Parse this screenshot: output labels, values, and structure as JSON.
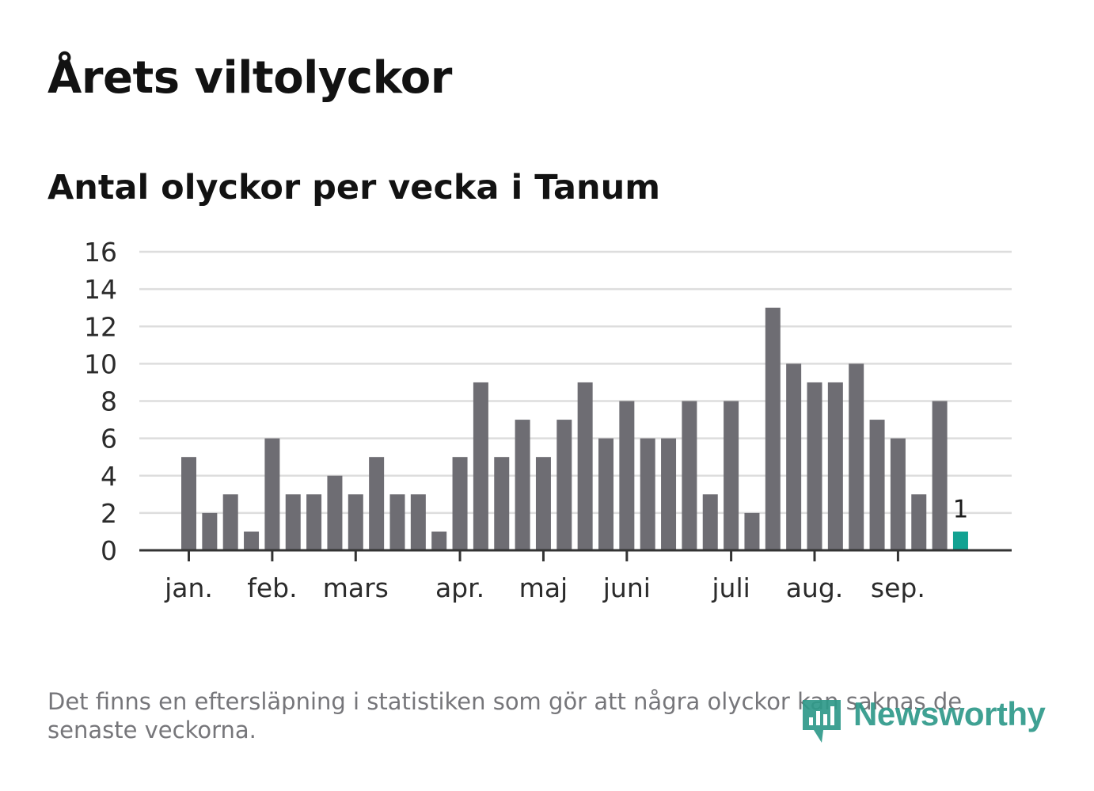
{
  "title": "Årets viltolyckor",
  "subtitle": "Antal olyckor per vecka i Tanum",
  "note": "Det finns en eftersläpning i statistiken som gör att några olyckor kan saknas de senaste veckorna.",
  "brand": {
    "name": "Newsworthy",
    "color": "#2f9a8a",
    "icon": "newsworthy-logo-icon"
  },
  "colors": {
    "bar": "#6e6d73",
    "highlight": "#12a292",
    "grid": "#dddddd",
    "axis": "#333333"
  },
  "chart_data": {
    "type": "bar",
    "title": "Antal olyckor per vecka i Tanum",
    "xlabel": "",
    "ylabel": "",
    "ylim": [
      0,
      16
    ],
    "yticks": [
      "0",
      "2",
      "4",
      "6",
      "8",
      "10",
      "12",
      "14",
      "16"
    ],
    "grid": true,
    "weeks": [
      1,
      2,
      3,
      4,
      5,
      6,
      7,
      8,
      9,
      10,
      11,
      12,
      13,
      14,
      15,
      16,
      17,
      18,
      19,
      20,
      21,
      22,
      23,
      24,
      25,
      26,
      27,
      28,
      29,
      30,
      31,
      32,
      33,
      34,
      35,
      36,
      37,
      38
    ],
    "values": [
      5,
      2,
      3,
      1,
      6,
      3,
      3,
      4,
      3,
      5,
      3,
      3,
      1,
      5,
      9,
      5,
      7,
      5,
      7,
      9,
      6,
      8,
      6,
      6,
      8,
      3,
      8,
      2,
      13,
      10,
      9,
      9,
      10,
      7,
      6,
      3,
      8,
      1
    ],
    "highlight_last": true,
    "last_value_label": "1",
    "month_ticks": [
      {
        "label": "jan.",
        "week": 1
      },
      {
        "label": "feb.",
        "week": 5
      },
      {
        "label": "mars",
        "week": 9
      },
      {
        "label": "apr.",
        "week": 14
      },
      {
        "label": "maj",
        "week": 18
      },
      {
        "label": "juni",
        "week": 22
      },
      {
        "label": "juli",
        "week": 27
      },
      {
        "label": "aug.",
        "week": 31
      },
      {
        "label": "sep.",
        "week": 35
      }
    ]
  }
}
